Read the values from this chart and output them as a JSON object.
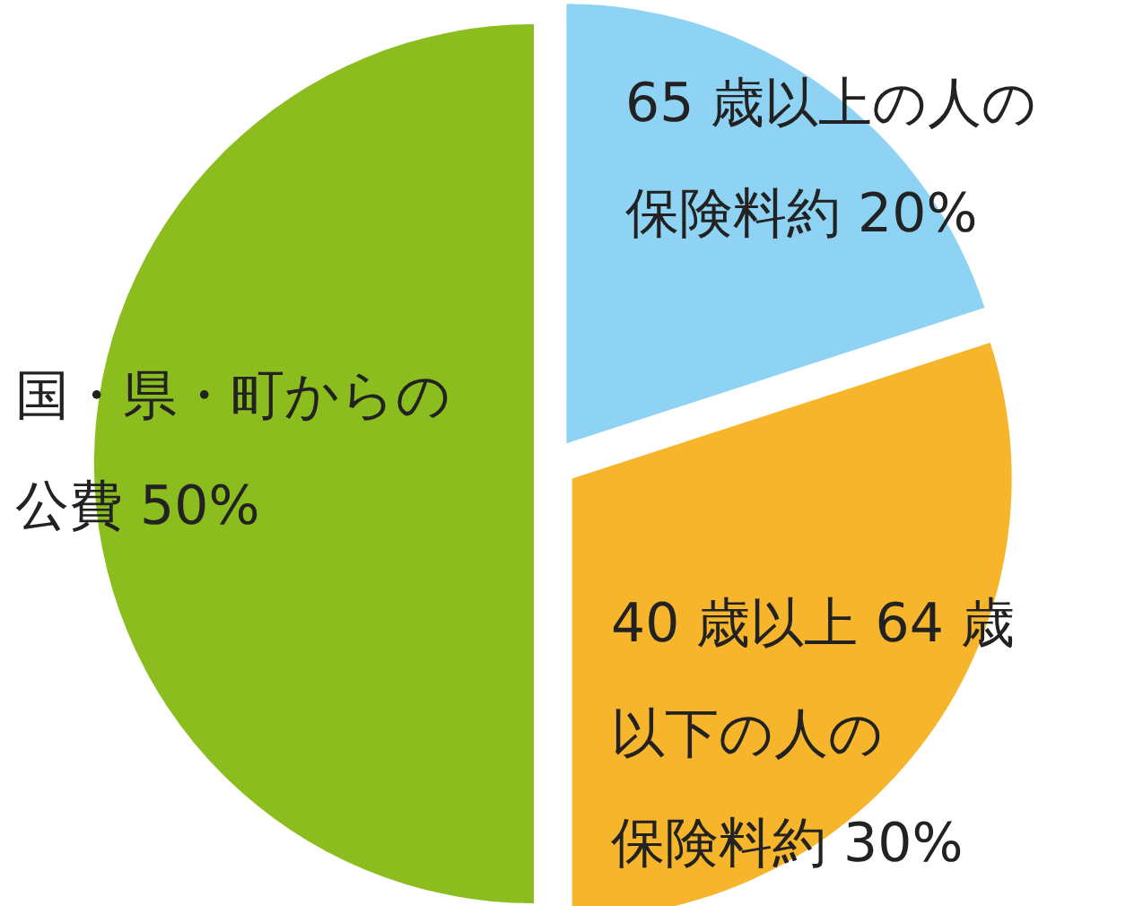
{
  "chart_data": {
    "type": "pie",
    "categories": [
      "65 歳以上の人の保険料約",
      "40 歳以上 64 歳以下の人の保険料約",
      "国・県・町からの公費"
    ],
    "values": [
      20,
      30,
      50
    ],
    "value_labels": [
      "20%",
      "30%",
      "50%"
    ],
    "colors": [
      "#8fd3f4",
      "#f7b52c",
      "#8cbd1e"
    ]
  }
}
